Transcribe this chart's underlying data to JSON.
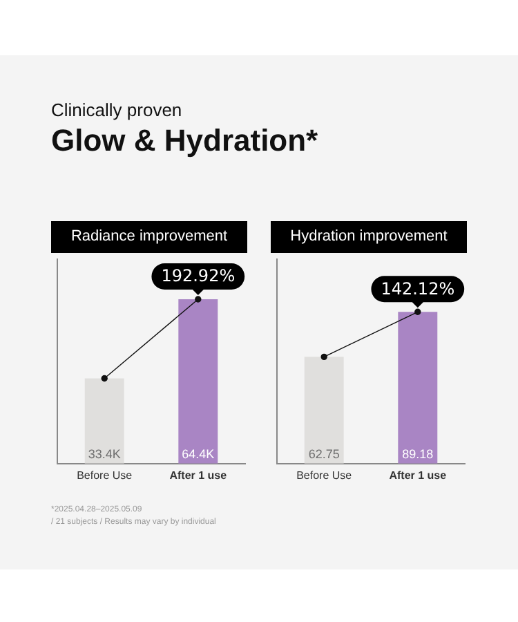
{
  "chart_data": [
    {
      "type": "other",
      "subtitle": "Clinically proven",
      "title": "Glow & Hydration*"
    },
    {
      "type": "bar",
      "title": "Radiance improvement",
      "categories": [
        "Before Use",
        "After 1 use"
      ],
      "tick_labels": "x",
      "marker": "circle",
      "series": [
        {
          "type": "bar",
          "colors": [
            "#e0dfdd",
            "#a985c4"
          ],
          "values": [
            33.4,
            64.4
          ],
          "value_labels": [
            "33.4K",
            "64.4K"
          ]
        },
        {
          "type": "line",
          "color": "#111111",
          "values": [
            33.4,
            64.4
          ]
        }
      ],
      "annotations": [
        {
          "text": "192.92%",
          "x": "After 1 use",
          "y": 64.4
        }
      ]
    },
    {
      "type": "bar",
      "title": "Hydration improvement",
      "categories": [
        "Before Use",
        "After 1 use"
      ],
      "tick_labels": "x",
      "marker": "circle",
      "series": [
        {
          "type": "bar",
          "colors": [
            "#e0dfdd",
            "#a985c4"
          ],
          "values": [
            62.75,
            89.18
          ],
          "value_labels": [
            "62.75",
            "89.18"
          ]
        },
        {
          "type": "line",
          "color": "#111111",
          "values": [
            62.75,
            89.18
          ]
        }
      ],
      "annotations": [
        {
          "text": "142.12%",
          "x": "After 1 use",
          "y": 89.18
        }
      ]
    },
    {
      "type": "other",
      "annotations": [
        "*2025.04.28–2025.05.09",
        "/ 21 subjects / Results may vary by individual"
      ]
    }
  ]
}
